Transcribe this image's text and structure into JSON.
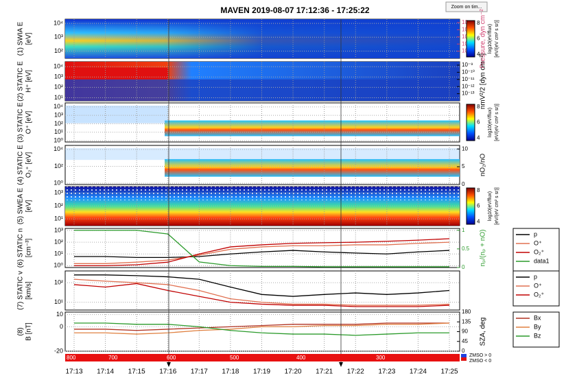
{
  "title": "MAVEN 2019-08-07 17:12:36 - 17:25:22",
  "zoom_button": "Zoom on tim...",
  "time_labels": [
    "17:13",
    "17:14",
    "17:15",
    "17:16",
    "17:17",
    "17:18",
    "17:19",
    "17:20",
    "17:21",
    "17:22",
    "17:23",
    "17:24",
    "17:25"
  ],
  "colorbar": {
    "ylim": [
      3.5,
      8.5
    ],
    "ticks": [
      8,
      6,
      4
    ],
    "label": "log10(eV/flux)",
    "units": "[eV/(eV cm² s sr)]"
  },
  "panels": [
    {
      "label_lines": [
        "(1) SWIA E",
        "[eV]"
      ],
      "log": true,
      "ylim": [
        30,
        20000
      ],
      "yticks": [
        {
          "value": 10000,
          "label": "10⁴"
        },
        {
          "value": 1000,
          "label": "10³"
        },
        {
          "value": 100,
          "label": "10²"
        }
      ],
      "colorbar": true,
      "right_axis": {
        "label": "Pressure, dyn cm⁻²",
        "color": "#d04070",
        "log": true,
        "ylim": [
          1e-14,
          3e-09
        ],
        "ticks": [
          {
            "value": 1e-09,
            "label": "10⁻⁹"
          },
          {
            "value": 1e-10,
            "label": "10⁻¹⁰"
          },
          {
            "value": 1e-11,
            "label": "10⁻¹¹"
          },
          {
            "value": 1e-12,
            "label": "10⁻¹²"
          },
          {
            "value": 1e-13,
            "label": "10⁻¹³"
          }
        ]
      }
    },
    {
      "label_lines": [
        "(2) STATIC E",
        "H⁺ [eV]"
      ],
      "log": true,
      "ylim": [
        5,
        30000
      ],
      "yticks": [
        {
          "value": 10000,
          "label": "10⁴"
        },
        {
          "value": 1000,
          "label": "10³"
        },
        {
          "value": 100,
          "label": "10²"
        },
        {
          "value": 10,
          "label": "10¹"
        }
      ],
      "right_axis": {
        "label": "nmV²/2 [dyn cm⁻²]",
        "color": "#000000",
        "log": true,
        "ylim": [
          1e-14,
          3e-09
        ],
        "ticks": [
          {
            "value": 1e-09,
            "label": "10⁻⁹"
          },
          {
            "value": 1e-10,
            "label": "10⁻¹⁰"
          },
          {
            "value": 1e-11,
            "label": "10⁻¹¹"
          },
          {
            "value": 1e-12,
            "label": "10⁻¹²"
          },
          {
            "value": 1e-13,
            "label": "10⁻¹³"
          }
        ]
      }
    },
    {
      "label_lines": [
        "(3) STATIC E",
        "O⁺ [eV]"
      ],
      "log": true,
      "ylim": [
        0.7,
        30000
      ],
      "yticks": [
        {
          "value": 10000,
          "label": "10⁴"
        },
        {
          "value": 1000,
          "label": "10³"
        },
        {
          "value": 100,
          "label": "10²"
        },
        {
          "value": 10,
          "label": "10¹"
        },
        {
          "value": 1,
          "label": "10⁰"
        }
      ],
      "colorbar": true
    },
    {
      "label_lines": [
        "(4) STATIC E",
        "O₂⁺ [eV]"
      ],
      "log": true,
      "ylim": [
        0.7,
        30000
      ],
      "yticks": [
        {
          "value": 10000,
          "label": "10⁴"
        },
        {
          "value": 100,
          "label": "10²"
        },
        {
          "value": 1,
          "label": "10⁰"
        }
      ],
      "right_axis": {
        "label": "nO₂/nO",
        "color": "#000000",
        "log": false,
        "ylim": [
          0,
          11
        ],
        "ticks": [
          10,
          5,
          0
        ]
      }
    },
    {
      "label_lines": [
        "(5) SWEA E",
        "[eV]"
      ],
      "log": true,
      "ylim": [
        3,
        3000
      ],
      "yticks": [
        {
          "value": 1000,
          "label": "10³"
        },
        {
          "value": 100,
          "label": "10²"
        },
        {
          "value": 10,
          "label": "10¹"
        }
      ],
      "colorbar": true
    },
    {
      "label_lines": [
        "(6) STATIC n",
        "[cm⁻³]"
      ],
      "log": true,
      "ylim": [
        0.7,
        1500
      ],
      "yticks": [
        {
          "value": 1000,
          "label": "10³"
        },
        {
          "value": 100,
          "label": "10²"
        },
        {
          "value": 10,
          "label": "10¹"
        },
        {
          "value": 1,
          "label": "10⁰"
        }
      ],
      "right_axis": {
        "label": "nₚ/(nₚ + nO)",
        "color": "#2a9a2a",
        "log": false,
        "ylim": [
          0,
          1.05
        ],
        "ticks": [
          1,
          0.5,
          0
        ]
      },
      "series": [
        {
          "name": "p",
          "color": "#000000",
          "values": [
            6,
            6,
            5,
            5,
            6,
            10,
            15,
            20,
            15,
            12,
            10,
            15,
            20
          ]
        },
        {
          "name": "O⁺",
          "color": "#e07050",
          "values": [
            1.5,
            1.5,
            2,
            3,
            8,
            25,
            40,
            50,
            50,
            60,
            60,
            80,
            100
          ]
        },
        {
          "name": "O₂⁺",
          "color": "#c00000",
          "values": [
            1,
            1,
            1.2,
            2,
            10,
            40,
            60,
            80,
            90,
            100,
            120,
            150,
            200
          ]
        },
        {
          "name": "data1",
          "color": "#2a9a2a",
          "axis": "y2",
          "values": [
            1,
            1,
            1,
            0.9,
            0.15,
            0.05,
            0.03,
            0.03,
            0.02,
            0.02,
            0.02,
            0.02,
            0.02
          ]
        }
      ]
    },
    {
      "label_lines": [
        "(7) STATIC v",
        "[km/s]"
      ],
      "log": true,
      "ylim": [
        4,
        400
      ],
      "yticks": [
        {
          "value": 100,
          "label": "10²"
        },
        {
          "value": 10,
          "label": "10¹"
        }
      ],
      "series": [
        {
          "name": "p",
          "color": "#000000",
          "values": [
            250,
            250,
            230,
            200,
            150,
            60,
            25,
            20,
            25,
            30,
            25,
            30,
            40
          ]
        },
        {
          "name": "O⁺",
          "color": "#e07050",
          "values": [
            150,
            120,
            100,
            80,
            40,
            15,
            10,
            8,
            8,
            7,
            7,
            7,
            8
          ]
        },
        {
          "name": "O₂⁺",
          "color": "#c00000",
          "values": [
            80,
            60,
            90,
            40,
            20,
            10,
            8,
            7,
            7,
            6,
            6,
            6,
            7
          ]
        }
      ]
    },
    {
      "label_lines": [
        "(8)",
        "B [nT]"
      ],
      "log": false,
      "ylim": [
        -20,
        12
      ],
      "yticks": [
        10,
        0,
        -20
      ],
      "right_axis": {
        "label": "SZA, deg",
        "color": "#000000",
        "log": false,
        "ylim": [
          0,
          180
        ],
        "ticks": [
          180,
          135,
          90,
          45,
          0
        ]
      },
      "series": [
        {
          "name": "Bx",
          "color": "#b03020",
          "values": [
            -2,
            -2,
            -3,
            -2,
            -1,
            0,
            1,
            2,
            2,
            2,
            3,
            3,
            3
          ]
        },
        {
          "name": "By",
          "color": "#e08040",
          "values": [
            -5,
            -5,
            -6,
            -5,
            -3,
            -2,
            0,
            0,
            1,
            1,
            2,
            2,
            3
          ]
        },
        {
          "name": "Bz",
          "color": "#2a9a2a",
          "values": [
            3,
            3,
            2,
            2,
            0,
            -3,
            -5,
            -6,
            -6,
            -7,
            -6,
            -5,
            -5
          ]
        }
      ]
    }
  ],
  "orbit_bar": {
    "altitudes": [
      800,
      700,
      600,
      500,
      400,
      300
    ]
  },
  "mso_legend": [
    "ZMSO > 0",
    "ZMSO < 0"
  ]
}
